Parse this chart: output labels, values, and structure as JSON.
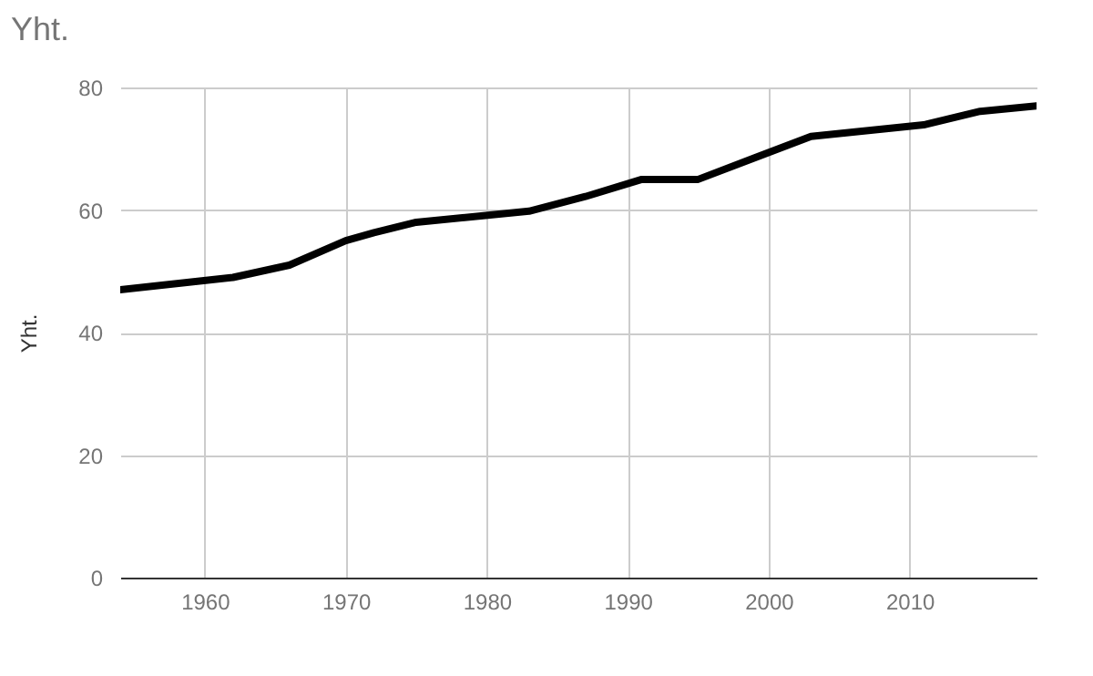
{
  "chart_data": {
    "type": "line",
    "title": "Yht.",
    "ylabel": "Yht.",
    "x": [
      1954,
      1962,
      1966,
      1970,
      1972,
      1975,
      1983,
      1987,
      1991,
      1995,
      1999,
      2003,
      2011,
      2015,
      2019
    ],
    "series": [
      {
        "color": "#000000",
        "values": [
          47,
          49,
          51,
          55,
          56.3,
          58,
          59.8,
          62.2,
          65,
          65,
          68.5,
          72,
          73.9,
          76.1,
          77
        ]
      }
    ],
    "xlim": [
      1954,
      2019
    ],
    "xticks": [
      1960,
      1970,
      1980,
      1990,
      2000,
      2010
    ],
    "ylim": [
      0,
      80
    ],
    "yticks": [
      0,
      20,
      40,
      60,
      80
    ],
    "grid": true,
    "legend": false,
    "marker": "none",
    "line_style": "solid"
  }
}
